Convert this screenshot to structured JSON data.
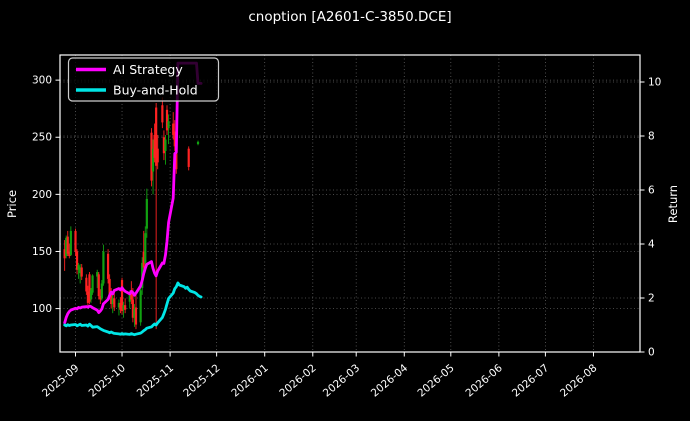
{
  "chart_data": {
    "type": "candlestick+line",
    "title": "cnoption [A2601-C-3850.DCE]",
    "background": "#000000",
    "grid": true,
    "legend_position": "upper left",
    "price_axis": {
      "label": "Price",
      "side": "left",
      "ticks": [
        100,
        150,
        200,
        250,
        300
      ],
      "range": [
        62,
        322
      ]
    },
    "return_axis": {
      "label": "Return",
      "side": "right",
      "ticks": [
        0,
        2,
        4,
        6,
        8,
        10
      ],
      "range": [
        0,
        11
      ]
    },
    "x_axis": {
      "range": [
        "2025-08-22",
        "2026-08-31"
      ],
      "tick_rotation": 40,
      "ticks": [
        {
          "label": "2025-09",
          "date": "2025-09-01"
        },
        {
          "label": "2025-10",
          "date": "2025-10-01"
        },
        {
          "label": "2025-11",
          "date": "2025-11-01"
        },
        {
          "label": "2025-12",
          "date": "2025-12-01"
        },
        {
          "label": "2026-01",
          "date": "2026-01-01"
        },
        {
          "label": "2026-02",
          "date": "2026-02-01"
        },
        {
          "label": "2026-03",
          "date": "2026-03-01"
        },
        {
          "label": "2026-04",
          "date": "2026-04-01"
        },
        {
          "label": "2026-05",
          "date": "2026-05-01"
        },
        {
          "label": "2026-06",
          "date": "2026-06-01"
        },
        {
          "label": "2026-07",
          "date": "2026-07-01"
        },
        {
          "label": "2026-08",
          "date": "2026-08-01"
        }
      ]
    },
    "colors": {
      "up": "#11a211",
      "down": "#ff2222",
      "ai": "#ff00ff",
      "bh": "#00e5e5",
      "grid": "#6a6a6a",
      "text": "#ffffff",
      "frame": "#ffffff",
      "legend_border": "#cccccc"
    },
    "legend": [
      {
        "label": "AI Strategy",
        "color": "#ff00ff"
      },
      {
        "label": "Buy-and-Hold",
        "color": "#00e5e5"
      }
    ],
    "candles": [
      [
        "2025-08-25",
        152,
        160,
        133,
        144
      ],
      [
        "2025-08-26",
        146,
        164,
        144,
        162
      ],
      [
        "2025-08-27",
        163,
        168,
        146,
        148
      ],
      [
        "2025-08-28",
        150,
        157,
        144,
        146
      ],
      [
        "2025-08-29",
        147,
        172,
        146,
        168
      ],
      [
        "2025-09-01",
        168,
        170,
        146,
        150
      ],
      [
        "2025-09-02",
        150,
        152,
        130,
        134
      ],
      [
        "2025-09-03",
        134,
        140,
        126,
        138
      ],
      [
        "2025-09-04",
        131,
        139,
        122,
        136
      ],
      [
        "2025-09-05",
        136,
        139,
        125,
        128
      ],
      [
        "2025-09-08",
        127,
        130,
        112,
        115
      ],
      [
        "2025-09-09",
        115,
        120,
        102,
        105
      ],
      [
        "2025-09-10",
        130,
        132,
        104,
        106
      ],
      [
        "2025-09-11",
        108,
        118,
        105,
        116
      ],
      [
        "2025-09-12",
        114,
        130,
        112,
        129
      ],
      [
        "2025-09-15",
        128,
        134,
        118,
        132
      ],
      [
        "2025-09-16",
        130,
        132,
        108,
        111
      ],
      [
        "2025-09-17",
        111,
        117,
        104,
        108
      ],
      [
        "2025-09-18",
        109,
        125,
        107,
        122
      ],
      [
        "2025-09-19",
        122,
        156,
        120,
        150
      ],
      [
        "2025-09-22",
        148,
        152,
        122,
        126
      ],
      [
        "2025-09-23",
        126,
        130,
        108,
        112
      ],
      [
        "2025-09-24",
        113,
        118,
        100,
        104
      ],
      [
        "2025-09-25",
        104,
        112,
        96,
        109
      ],
      [
        "2025-09-26",
        109,
        114,
        98,
        101
      ],
      [
        "2025-09-29",
        101,
        108,
        94,
        105
      ],
      [
        "2025-09-30",
        105,
        110,
        96,
        99
      ],
      [
        "2025-10-01",
        125,
        127,
        95,
        98
      ],
      [
        "2025-10-02",
        99,
        106,
        92,
        103
      ],
      [
        "2025-10-03",
        103,
        109,
        96,
        99
      ],
      [
        "2025-10-06",
        106,
        116,
        100,
        114
      ],
      [
        "2025-10-07",
        115,
        124,
        104,
        108
      ],
      [
        "2025-10-08",
        108,
        118,
        88,
        92
      ],
      [
        "2025-10-09",
        92,
        104,
        84,
        100
      ],
      [
        "2025-10-10",
        101,
        112,
        82,
        86
      ],
      [
        "2025-10-13",
        88,
        120,
        85,
        116
      ],
      [
        "2025-10-14",
        118,
        145,
        112,
        140
      ],
      [
        "2025-10-15",
        150,
        168,
        132,
        136
      ],
      [
        "2025-10-16",
        140,
        172,
        134,
        166
      ],
      [
        "2025-10-17",
        170,
        205,
        162,
        196
      ],
      [
        "2025-10-20",
        254,
        258,
        207,
        212
      ],
      [
        "2025-10-21",
        220,
        248,
        200,
        240
      ],
      [
        "2025-10-22",
        252,
        262,
        228,
        232
      ],
      [
        "2025-10-23",
        276,
        280,
        82,
        225
      ],
      [
        "2025-10-24",
        240,
        252,
        222,
        228
      ],
      [
        "2025-10-27",
        278,
        285,
        258,
        263
      ],
      [
        "2025-10-28",
        250,
        256,
        230,
        236
      ],
      [
        "2025-10-29",
        238,
        252,
        226,
        248
      ],
      [
        "2025-10-30",
        274,
        278,
        252,
        256
      ],
      [
        "2025-10-31",
        258,
        270,
        244,
        264
      ],
      [
        "2025-11-03",
        262,
        272,
        248,
        252
      ],
      [
        "2025-11-04",
        255,
        265,
        238,
        242
      ],
      [
        "2025-11-05",
        236,
        240,
        218,
        222
      ],
      [
        "2025-11-13",
        240,
        242,
        221,
        224
      ],
      [
        "2025-11-19",
        244,
        247,
        243,
        246
      ]
    ],
    "series": [
      {
        "name": "AI Strategy",
        "axis": "return",
        "color": "#ff00ff",
        "points": [
          [
            "2025-08-25",
            1.08
          ],
          [
            "2025-08-26",
            1.28
          ],
          [
            "2025-08-27",
            1.42
          ],
          [
            "2025-08-28",
            1.5
          ],
          [
            "2025-08-29",
            1.55
          ],
          [
            "2025-09-01",
            1.62
          ],
          [
            "2025-09-02",
            1.6
          ],
          [
            "2025-09-03",
            1.65
          ],
          [
            "2025-09-04",
            1.63
          ],
          [
            "2025-09-05",
            1.66
          ],
          [
            "2025-09-08",
            1.68
          ],
          [
            "2025-09-09",
            1.66
          ],
          [
            "2025-09-10",
            1.7
          ],
          [
            "2025-09-11",
            1.68
          ],
          [
            "2025-09-12",
            1.64
          ],
          [
            "2025-09-15",
            1.55
          ],
          [
            "2025-09-16",
            1.46
          ],
          [
            "2025-09-17",
            1.52
          ],
          [
            "2025-09-18",
            1.6
          ],
          [
            "2025-09-19",
            1.78
          ],
          [
            "2025-09-22",
            1.95
          ],
          [
            "2025-09-23",
            2.1
          ],
          [
            "2025-09-24",
            2.22
          ],
          [
            "2025-09-25",
            2.15
          ],
          [
            "2025-09-26",
            2.28
          ],
          [
            "2025-09-29",
            2.35
          ],
          [
            "2025-09-30",
            2.3
          ],
          [
            "2025-10-01",
            2.38
          ],
          [
            "2025-10-02",
            2.3
          ],
          [
            "2025-10-03",
            2.25
          ],
          [
            "2025-10-06",
            2.15
          ],
          [
            "2025-10-07",
            2.25
          ],
          [
            "2025-10-08",
            2.2
          ],
          [
            "2025-10-09",
            2.1
          ],
          [
            "2025-10-10",
            2.18
          ],
          [
            "2025-10-13",
            2.45
          ],
          [
            "2025-10-14",
            2.65
          ],
          [
            "2025-10-15",
            2.9
          ],
          [
            "2025-10-16",
            3.1
          ],
          [
            "2025-10-17",
            3.25
          ],
          [
            "2025-10-20",
            3.35
          ],
          [
            "2025-10-21",
            3.1
          ],
          [
            "2025-10-22",
            2.92
          ],
          [
            "2025-10-23",
            2.82
          ],
          [
            "2025-10-24",
            3.0
          ],
          [
            "2025-10-27",
            3.3
          ],
          [
            "2025-10-28",
            3.28
          ],
          [
            "2025-10-29",
            3.6
          ],
          [
            "2025-10-30",
            4.1
          ],
          [
            "2025-10-31",
            4.8
          ],
          [
            "2025-11-03",
            5.7
          ],
          [
            "2025-11-04",
            7.35
          ],
          [
            "2025-11-05",
            7.4
          ],
          [
            "2025-11-06",
            10.7
          ],
          [
            "2025-11-07",
            10.7
          ],
          [
            "2025-11-10",
            10.7
          ],
          [
            "2025-11-11",
            10.7
          ],
          [
            "2025-11-12",
            10.7
          ],
          [
            "2025-11-13",
            10.7
          ],
          [
            "2025-11-14",
            10.7
          ],
          [
            "2025-11-17",
            10.7
          ],
          [
            "2025-11-18",
            10.7
          ],
          [
            "2025-11-19",
            9.95
          ],
          [
            "2025-11-20",
            9.95
          ],
          [
            "2025-11-21",
            9.95
          ]
        ]
      },
      {
        "name": "Buy-and-Hold",
        "axis": "return",
        "color": "#00e5e5",
        "points": [
          [
            "2025-08-25",
            1.0
          ],
          [
            "2025-08-26",
            0.97
          ],
          [
            "2025-08-27",
            1.01
          ],
          [
            "2025-08-28",
            0.98
          ],
          [
            "2025-08-29",
            1.0
          ],
          [
            "2025-09-01",
            1.02
          ],
          [
            "2025-09-02",
            0.97
          ],
          [
            "2025-09-03",
            1.0
          ],
          [
            "2025-09-04",
            1.03
          ],
          [
            "2025-09-05",
            0.98
          ],
          [
            "2025-09-08",
            1.0
          ],
          [
            "2025-09-09",
            0.96
          ],
          [
            "2025-09-10",
            1.03
          ],
          [
            "2025-09-11",
            0.98
          ],
          [
            "2025-09-12",
            0.92
          ],
          [
            "2025-09-15",
            0.94
          ],
          [
            "2025-09-16",
            0.9
          ],
          [
            "2025-09-17",
            0.86
          ],
          [
            "2025-09-18",
            0.83
          ],
          [
            "2025-09-19",
            0.8
          ],
          [
            "2025-09-22",
            0.74
          ],
          [
            "2025-09-23",
            0.71
          ],
          [
            "2025-09-24",
            0.74
          ],
          [
            "2025-09-25",
            0.71
          ],
          [
            "2025-09-26",
            0.69
          ],
          [
            "2025-09-29",
            0.67
          ],
          [
            "2025-09-30",
            0.66
          ],
          [
            "2025-10-01",
            0.68
          ],
          [
            "2025-10-02",
            0.66
          ],
          [
            "2025-10-03",
            0.67
          ],
          [
            "2025-10-06",
            0.65
          ],
          [
            "2025-10-07",
            0.68
          ],
          [
            "2025-10-08",
            0.66
          ],
          [
            "2025-10-09",
            0.64
          ],
          [
            "2025-10-10",
            0.66
          ],
          [
            "2025-10-13",
            0.7
          ],
          [
            "2025-10-14",
            0.74
          ],
          [
            "2025-10-15",
            0.79
          ],
          [
            "2025-10-16",
            0.83
          ],
          [
            "2025-10-17",
            0.88
          ],
          [
            "2025-10-20",
            0.93
          ],
          [
            "2025-10-21",
            0.99
          ],
          [
            "2025-10-22",
            1.04
          ],
          [
            "2025-10-23",
            1.0
          ],
          [
            "2025-10-24",
            1.08
          ],
          [
            "2025-10-27",
            1.28
          ],
          [
            "2025-10-28",
            1.42
          ],
          [
            "2025-10-29",
            1.58
          ],
          [
            "2025-10-30",
            1.78
          ],
          [
            "2025-10-31",
            1.98
          ],
          [
            "2025-11-03",
            2.18
          ],
          [
            "2025-11-04",
            2.35
          ],
          [
            "2025-11-05",
            2.42
          ],
          [
            "2025-11-06",
            2.56
          ],
          [
            "2025-11-07",
            2.48
          ],
          [
            "2025-11-10",
            2.42
          ],
          [
            "2025-11-11",
            2.36
          ],
          [
            "2025-11-12",
            2.4
          ],
          [
            "2025-11-13",
            2.32
          ],
          [
            "2025-11-14",
            2.26
          ],
          [
            "2025-11-17",
            2.2
          ],
          [
            "2025-11-18",
            2.16
          ],
          [
            "2025-11-19",
            2.1
          ],
          [
            "2025-11-20",
            2.06
          ],
          [
            "2025-11-21",
            2.04
          ]
        ]
      }
    ]
  }
}
